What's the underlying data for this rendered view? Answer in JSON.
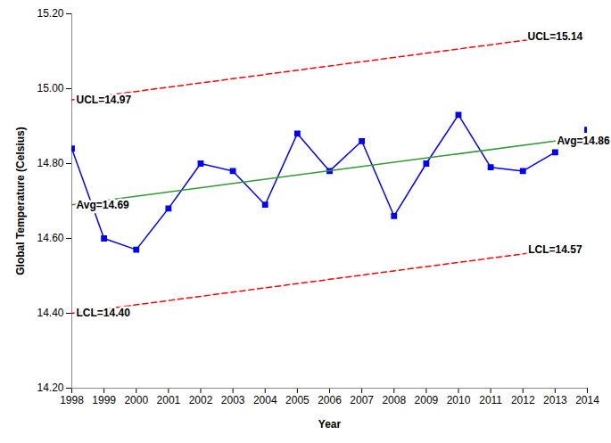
{
  "chart_data": {
    "type": "line",
    "x_label": "Year",
    "y_label": "Global Temperature (Celsius)",
    "x": [
      1998,
      1999,
      2000,
      2001,
      2002,
      2003,
      2004,
      2005,
      2006,
      2007,
      2008,
      2009,
      2010,
      2011,
      2012,
      2013,
      2014
    ],
    "xlim": [
      1998,
      2014
    ],
    "xticks": [
      1998,
      1999,
      2000,
      2001,
      2002,
      2003,
      2004,
      2005,
      2006,
      2007,
      2008,
      2009,
      2010,
      2011,
      2012,
      2013,
      2014
    ],
    "ylim": [
      14.2,
      15.2
    ],
    "yticks": [
      {
        "value": 14.2,
        "label": "14.20"
      },
      {
        "value": 14.4,
        "label": "14.40"
      },
      {
        "value": 14.6,
        "label": "14.60"
      },
      {
        "value": 14.8,
        "label": "14.80"
      },
      {
        "value": 15.0,
        "label": "15.00"
      },
      {
        "value": 15.2,
        "label": "15.20"
      }
    ],
    "grid": false,
    "series": [
      {
        "type": "line",
        "color": "#0000ff",
        "marker": "square",
        "line_style": "solid",
        "values": [
          14.84,
          14.6,
          14.57,
          14.68,
          14.8,
          14.78,
          14.69,
          14.88,
          14.78,
          14.86,
          14.66,
          14.8,
          14.93,
          14.79,
          14.78,
          14.83,
          null
        ]
      },
      {
        "type": "scatter",
        "color": "#0000ff",
        "marker": "square",
        "values": [
          null,
          null,
          null,
          null,
          null,
          null,
          null,
          null,
          null,
          null,
          null,
          null,
          null,
          null,
          null,
          null,
          14.89
        ]
      },
      {
        "type": "line",
        "color": "#ff0000",
        "line_style": "dashed",
        "x": [
          1998,
          2013
        ],
        "values": [
          14.97,
          15.14
        ]
      },
      {
        "type": "line",
        "color": "#339933",
        "line_style": "solid",
        "x": [
          1998,
          2013
        ],
        "values": [
          14.69,
          14.86
        ]
      },
      {
        "type": "line",
        "color": "#ff0000",
        "line_style": "dashed",
        "x": [
          1998,
          2013
        ],
        "values": [
          14.4,
          14.57
        ]
      }
    ],
    "annotations": [
      {
        "text": "UCL=14.97",
        "x": 1998,
        "y": 14.97
      },
      {
        "text": "Avg=14.69",
        "x": 1998,
        "y": 14.69
      },
      {
        "text": "LCL=14.40",
        "x": 1998,
        "y": 14.4
      },
      {
        "text": "UCL=15.14",
        "x": 2013,
        "y": 15.14
      },
      {
        "text": "Avg=14.86",
        "x": 2013,
        "y": 14.86
      },
      {
        "text": "LCL=14.57",
        "x": 2013,
        "y": 14.57
      }
    ]
  }
}
